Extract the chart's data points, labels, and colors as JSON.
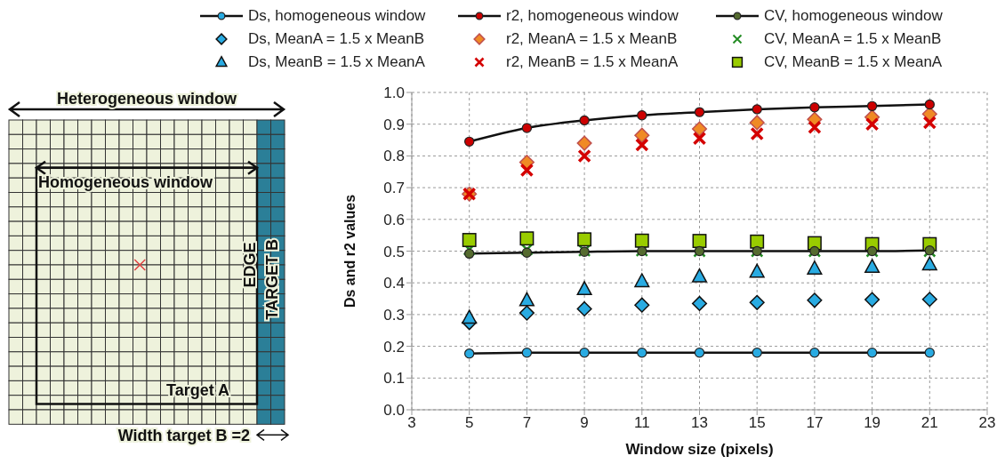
{
  "chart_data": {
    "type": "scatter",
    "xlabel": "Window size (pixels)",
    "ylabel": "Ds and r2 values",
    "x": [
      5,
      7,
      9,
      11,
      13,
      15,
      17,
      19,
      21
    ],
    "series": [
      {
        "name": "Ds, homogeneous window",
        "type": "line",
        "marker": "circle",
        "color": "#29abe2",
        "values": [
          0.177,
          0.18,
          0.18,
          0.18,
          0.18,
          0.18,
          0.18,
          0.18,
          0.18
        ]
      },
      {
        "name": "r2, homogeneous window",
        "type": "line",
        "marker": "circle",
        "color": "#cc0000",
        "values": [
          0.845,
          0.888,
          0.912,
          0.928,
          0.938,
          0.947,
          0.953,
          0.957,
          0.962
        ]
      },
      {
        "name": "CV, homogeneous window",
        "type": "line",
        "marker": "circle",
        "color": "#556b2f",
        "values": [
          0.492,
          0.495,
          0.498,
          0.5,
          0.5,
          0.5,
          0.5,
          0.5,
          0.502
        ]
      },
      {
        "name": "Ds, MeanA = 1.5 x MeanB",
        "marker": "diamond",
        "color": "#29abe2",
        "values": [
          0.275,
          0.305,
          0.318,
          0.33,
          0.335,
          0.338,
          0.345,
          0.347,
          0.348
        ]
      },
      {
        "name": "r2, MeanA = 1.5 x MeanB",
        "marker": "diamond",
        "color": "#f08a24",
        "values": [
          0.68,
          0.78,
          0.84,
          0.865,
          0.885,
          0.905,
          0.915,
          0.922,
          0.932
        ]
      },
      {
        "name": "CV, MeanA = 1.5 x MeanB",
        "marker": "cross",
        "color": "#228b22",
        "values": [
          0.505,
          0.505,
          0.502,
          0.502,
          0.5,
          0.5,
          0.5,
          0.5,
          0.5
        ]
      },
      {
        "name": "Ds, MeanB = 1.5 x MeanA",
        "marker": "triangle",
        "color": "#29abe2",
        "values": [
          0.29,
          0.345,
          0.38,
          0.405,
          0.42,
          0.435,
          0.445,
          0.45,
          0.458
        ]
      },
      {
        "name": "r2, MeanB = 1.5 x MeanA",
        "marker": "cross",
        "color": "#d40000",
        "values": [
          0.68,
          0.755,
          0.8,
          0.835,
          0.855,
          0.87,
          0.89,
          0.9,
          0.905
        ]
      },
      {
        "name": "CV, MeanB = 1.5 x MeanA",
        "marker": "square",
        "color": "#99cc00",
        "values": [
          0.535,
          0.54,
          0.537,
          0.533,
          0.532,
          0.53,
          0.525,
          0.522,
          0.522
        ]
      }
    ],
    "xlim": [
      3,
      23
    ],
    "xticks": [
      3,
      5,
      7,
      9,
      11,
      13,
      15,
      17,
      19,
      21,
      23
    ],
    "ylim": [
      0,
      1
    ],
    "yticks": [
      {
        "value": 0,
        "label": "0.0"
      },
      {
        "value": 0.1,
        "label": "0.1"
      },
      {
        "value": 0.2,
        "label": "0.2"
      },
      {
        "value": 0.3,
        "label": "0.3"
      },
      {
        "value": 0.4,
        "label": "0.4"
      },
      {
        "value": 0.5,
        "label": "0.5"
      },
      {
        "value": 0.6,
        "label": "0.6"
      },
      {
        "value": 0.7,
        "label": "0.7"
      },
      {
        "value": 0.8,
        "label": "0.8"
      },
      {
        "value": 0.9,
        "label": "0.9"
      },
      {
        "value": 1,
        "label": "1.0"
      }
    ],
    "grid": true,
    "legend": "top",
    "annotations": [
      "Heterogeneous window",
      "Homogeneous window",
      "Target A",
      "EDGE",
      "TARGET B",
      "Width target B =2"
    ]
  }
}
